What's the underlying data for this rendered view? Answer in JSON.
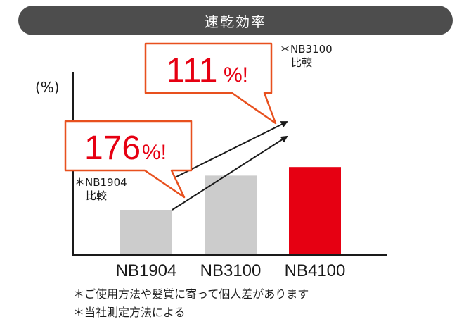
{
  "title": "速乾効率",
  "unit_label": "(%)",
  "chart_data": {
    "type": "bar",
    "categories": [
      "NB1904",
      "NB3100",
      "NB4100"
    ],
    "values": [
      100,
      176,
      195
    ],
    "bar_colors": [
      "#cccccc",
      "#cccccc",
      "#e60012"
    ],
    "grid": false
  },
  "callouts": [
    {
      "value": "176",
      "suffix": "%!",
      "note": [
        "＊NB1904",
        "比較"
      ]
    },
    {
      "value": "111",
      "suffix": "%!",
      "note": [
        "＊NB3100",
        "比較"
      ]
    }
  ],
  "footnotes": [
    "＊ご使用方法や髪質に寄って個人差があります",
    "＊当社測定方法による"
  ],
  "colors": {
    "accent": "#e60012",
    "callout_border": "#e8501e",
    "title_bg": "#4d4d4d",
    "bar_grey": "#cccccc"
  }
}
